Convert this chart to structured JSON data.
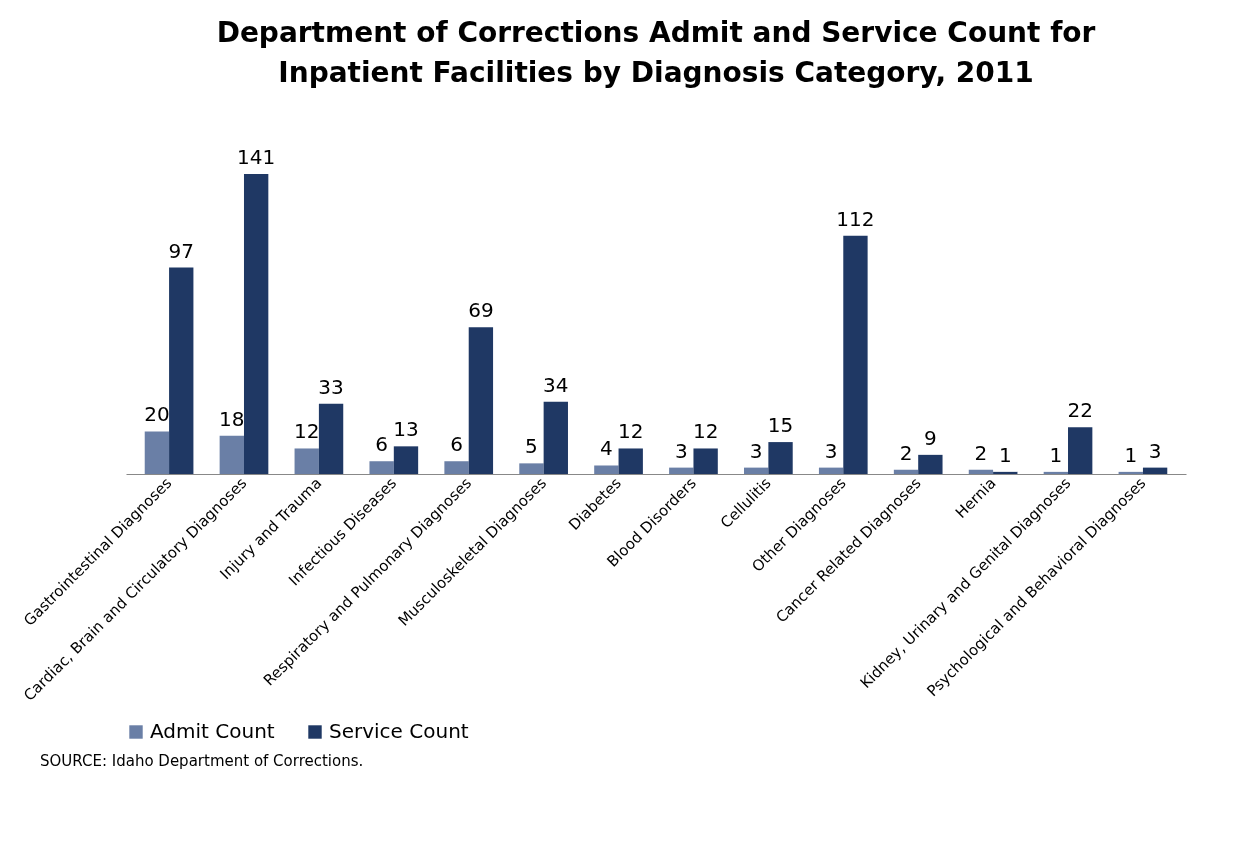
{
  "chart_data": {
    "type": "bar",
    "title": "Department of Corrections Admit  and Service Count for Inpatient Facilities by Diagnosis Category, 2011",
    "categories": [
      "Gastrointestinal Diagnoses",
      "Cardiac, Brain and Circulatory Diagnoses",
      "Injury and Trauma",
      "Infectious Diseases",
      "Respiratory and Pulmonary Diagnoses",
      "Musculoskeletal Diagnoses",
      "Diabetes",
      "Blood Disorders",
      "Cellulitis",
      "Other Diagnoses",
      "Cancer Related Diagnoses",
      "Hernia",
      "Kidney, Urinary and Genital Diagnoses",
      "Psychological and Behavioral Diagnoses"
    ],
    "series": [
      {
        "name": "Admit Count",
        "color": "#6a7fa6",
        "values": [
          20,
          18,
          12,
          6,
          6,
          5,
          4,
          3,
          3,
          3,
          2,
          2,
          1,
          1
        ]
      },
      {
        "name": "Service Count",
        "color": "#1f3864",
        "values": [
          97,
          141,
          33,
          13,
          69,
          34,
          12,
          12,
          15,
          112,
          9,
          1,
          22,
          3
        ]
      }
    ],
    "data_labels": true,
    "legend": "bottom",
    "grid": false,
    "annotations": [
      "SOURCE:  Idaho Department of Corrections."
    ]
  }
}
